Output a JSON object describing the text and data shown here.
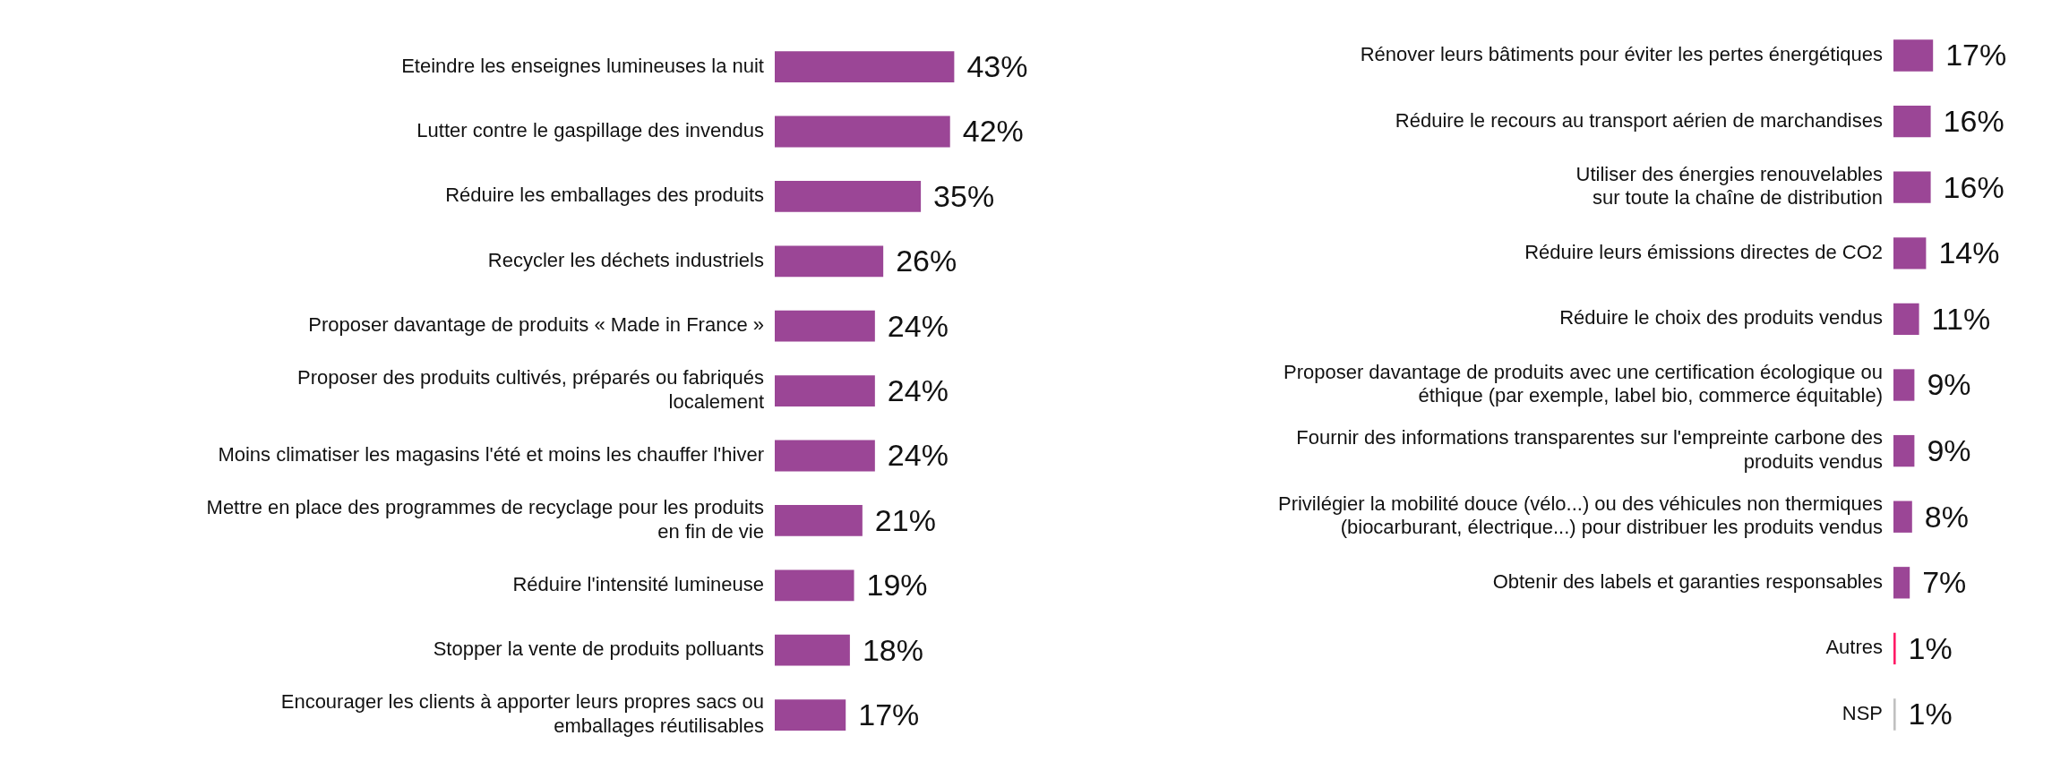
{
  "chart_data": [
    {
      "type": "bar",
      "orientation": "horizontal",
      "categories": [
        "Eteindre les enseignes lumineuses la nuit",
        "Lutter contre le gaspillage des invendus",
        "Réduire les emballages des produits",
        "Recycler les déchets industriels",
        "Proposer davantage de produits « Made in France »",
        "Proposer des produits cultivés, préparés ou fabriqués\nlocalement",
        "Moins climatiser les magasins l'été et moins les chauffer l'hiver",
        "Mettre en place des programmes de recyclage pour les produits\nen fin de vie",
        "Réduire l'intensité lumineuse",
        "Stopper la vente de produits polluants",
        "Encourager les clients à apporter leurs propres sacs ou\nemballages réutilisables"
      ],
      "values": [
        43,
        42,
        35,
        26,
        24,
        24,
        24,
        21,
        19,
        18,
        17
      ],
      "colors": [
        "#9b4696",
        "#9b4696",
        "#9b4696",
        "#9b4696",
        "#9b4696",
        "#9b4696",
        "#9b4696",
        "#9b4696",
        "#9b4696",
        "#9b4696",
        "#9b4696"
      ],
      "value_labels": [
        "43%",
        "42%",
        "35%",
        "26%",
        "24%",
        "24%",
        "24%",
        "21%",
        "19%",
        "18%",
        "17%"
      ],
      "tick_labels": "y"
    },
    {
      "type": "bar",
      "orientation": "horizontal",
      "categories": [
        "Rénover leurs bâtiments pour éviter les pertes énergétiques",
        "Réduire le recours au transport aérien de marchandises",
        "Utiliser des énergies renouvelables\nsur toute la chaîne de distribution",
        "Réduire leurs émissions directes de CO2",
        "Réduire le choix des produits vendus",
        "Proposer davantage de produits avec une certification écologique ou\néthique (par exemple, label bio, commerce équitable)",
        "Fournir des informations transparentes sur l'empreinte carbone des\nproduits vendus",
        "Privilégier la mobilité douce (vélo...) ou des véhicules non thermiques\n(biocarburant, électrique...) pour distribuer les produits vendus",
        "Obtenir des labels et garanties responsables",
        "Autres",
        "NSP"
      ],
      "values": [
        17,
        16,
        16,
        14,
        11,
        9,
        9,
        8,
        7,
        1,
        1
      ],
      "colors": [
        "#9b4696",
        "#9b4696",
        "#9b4696",
        "#9b4696",
        "#9b4696",
        "#9b4696",
        "#9b4696",
        "#9b4696",
        "#9b4696",
        "#ff1a66",
        "#c0c0c0"
      ],
      "value_labels": [
        "17%",
        "16%",
        "16%",
        "14%",
        "11%",
        "9%",
        "9%",
        "8%",
        "7%",
        "1%",
        "1%"
      ],
      "tick_labels": "y"
    }
  ]
}
